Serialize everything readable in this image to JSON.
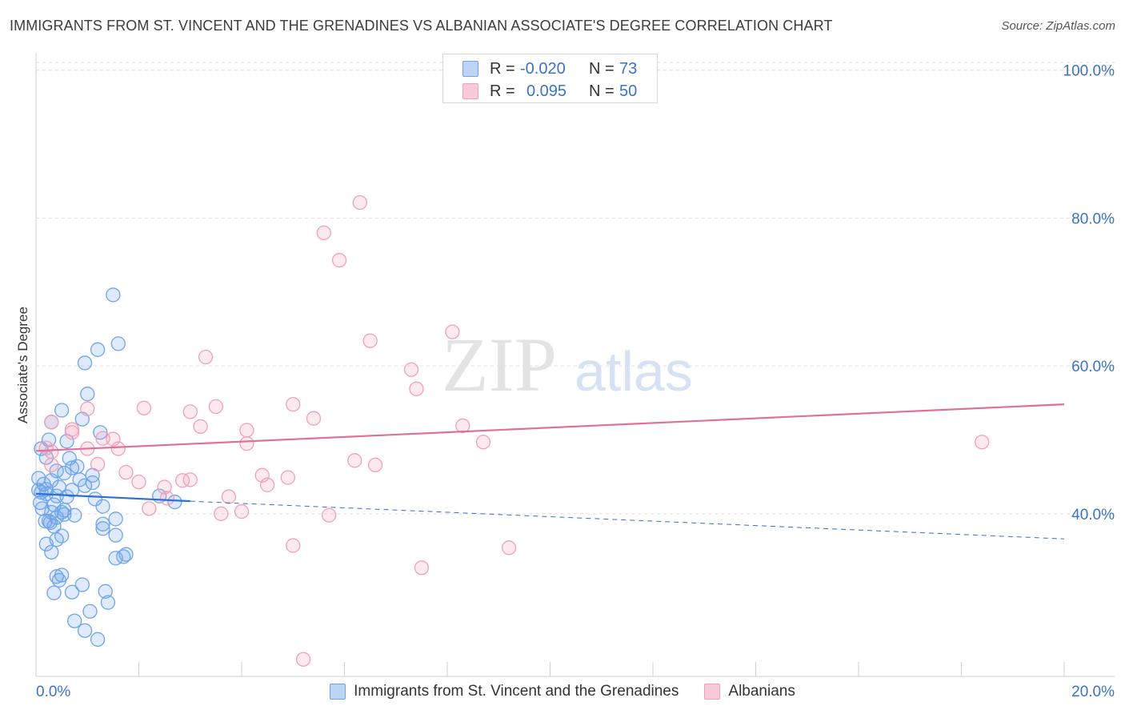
{
  "header": {
    "title": "IMMIGRANTS FROM ST. VINCENT AND THE GRENADINES VS ALBANIAN ASSOCIATE'S DEGREE CORRELATION CHART",
    "source": "Source: ZipAtlas.com"
  },
  "watermark": {
    "zip": "ZIP",
    "atlas": "atlas"
  },
  "legend": {
    "rows": [
      {
        "r_label": "R =",
        "r_value": "-0.020",
        "n_label": "N =",
        "n_value": "73",
        "color": "#6ea4e8"
      },
      {
        "r_label": "R =",
        "r_value": "0.095",
        "n_label": "N =",
        "n_value": "50",
        "color": "#f0a0b8"
      }
    ]
  },
  "chart_data": {
    "type": "scatter",
    "title": "IMMIGRANTS FROM ST. VINCENT AND THE GRENADINES VS ALBANIAN ASSOCIATE'S DEGREE CORRELATION CHART",
    "xlabel": "",
    "ylabel": "Associate's Degree",
    "xlim": [
      0,
      20
    ],
    "ylim": [
      18,
      103
    ],
    "x_tick_labels": [
      "0.0%",
      "20.0%"
    ],
    "y_ticks": [
      40,
      60,
      80,
      100
    ],
    "y_tick_labels": [
      "40.0%",
      "60.0%",
      "80.0%",
      "100.0%"
    ],
    "grid": true,
    "legend_position": "bottom-center",
    "series": [
      {
        "name": "Immigrants from St. Vincent and the Grenadines",
        "color": "#6ea4e8",
        "line_color": "#2f6fd0",
        "trend": {
          "x": [
            0,
            3
          ],
          "y": [
            42.7,
            41.7
          ],
          "dashed_to": [
            20,
            36.6
          ]
        },
        "points": [
          [
            1.5,
            69.6
          ],
          [
            1.2,
            62.2
          ],
          [
            1.6,
            63.0
          ],
          [
            0.95,
            60.4
          ],
          [
            1.0,
            56.2
          ],
          [
            0.5,
            54.0
          ],
          [
            0.9,
            52.8
          ],
          [
            0.3,
            52.4
          ],
          [
            0.25,
            50.0
          ],
          [
            0.6,
            49.8
          ],
          [
            1.25,
            51.0
          ],
          [
            0.1,
            48.8
          ],
          [
            0.2,
            47.6
          ],
          [
            0.65,
            47.5
          ],
          [
            0.8,
            46.4
          ],
          [
            0.4,
            45.8
          ],
          [
            0.7,
            46.2
          ],
          [
            0.55,
            45.5
          ],
          [
            0.05,
            44.8
          ],
          [
            0.3,
            44.5
          ],
          [
            1.1,
            44.2
          ],
          [
            0.7,
            43.2
          ],
          [
            0.1,
            42.9
          ],
          [
            0.2,
            42.7
          ],
          [
            0.4,
            42.4
          ],
          [
            1.15,
            42.0
          ],
          [
            2.4,
            42.4
          ],
          [
            2.7,
            41.6
          ],
          [
            0.35,
            41.2
          ],
          [
            1.3,
            41.0
          ],
          [
            0.55,
            40.5
          ],
          [
            0.3,
            40.2
          ],
          [
            0.4,
            39.5
          ],
          [
            0.5,
            40.2
          ],
          [
            0.55,
            39.9
          ],
          [
            0.75,
            39.8
          ],
          [
            1.55,
            39.3
          ],
          [
            1.3,
            38.6
          ],
          [
            0.25,
            39.0
          ],
          [
            0.35,
            38.3
          ],
          [
            1.3,
            38.0
          ],
          [
            0.4,
            36.5
          ],
          [
            0.5,
            37.0
          ],
          [
            1.55,
            37.1
          ],
          [
            0.2,
            35.9
          ],
          [
            0.3,
            34.8
          ],
          [
            1.55,
            34.0
          ],
          [
            1.75,
            34.5
          ],
          [
            1.7,
            34.2
          ],
          [
            0.4,
            31.5
          ],
          [
            0.5,
            31.7
          ],
          [
            0.45,
            31.0
          ],
          [
            0.9,
            30.4
          ],
          [
            1.35,
            29.5
          ],
          [
            0.35,
            29.3
          ],
          [
            0.7,
            29.4
          ],
          [
            1.4,
            28.0
          ],
          [
            1.05,
            26.8
          ],
          [
            0.75,
            25.5
          ],
          [
            0.95,
            24.2
          ],
          [
            1.2,
            23.0
          ],
          [
            0.05,
            43.2
          ],
          [
            0.08,
            41.5
          ],
          [
            0.15,
            44.0
          ],
          [
            0.2,
            43.3
          ],
          [
            0.12,
            40.7
          ],
          [
            0.18,
            39.0
          ],
          [
            0.28,
            38.8
          ],
          [
            0.6,
            42.3
          ],
          [
            0.85,
            44.6
          ],
          [
            0.95,
            43.8
          ],
          [
            1.1,
            45.2
          ],
          [
            0.45,
            43.6
          ]
        ]
      },
      {
        "name": "Albanians",
        "color": "#f0a0b8",
        "line_color": "#e0709a",
        "trend": {
          "x": [
            0,
            20
          ],
          "y": [
            48.5,
            54.8
          ]
        },
        "points": [
          [
            6.3,
            82.1
          ],
          [
            5.6,
            78.0
          ],
          [
            5.9,
            74.3
          ],
          [
            8.1,
            64.6
          ],
          [
            6.5,
            63.4
          ],
          [
            3.3,
            61.2
          ],
          [
            7.3,
            59.5
          ],
          [
            7.4,
            56.9
          ],
          [
            2.1,
            54.3
          ],
          [
            3.5,
            54.5
          ],
          [
            5.0,
            54.8
          ],
          [
            1.0,
            54.2
          ],
          [
            3.0,
            53.8
          ],
          [
            0.3,
            52.4
          ],
          [
            5.4,
            52.9
          ],
          [
            3.2,
            51.8
          ],
          [
            8.3,
            51.9
          ],
          [
            0.7,
            51.4
          ],
          [
            4.1,
            51.3
          ],
          [
            0.7,
            51.0
          ],
          [
            1.3,
            50.2
          ],
          [
            1.5,
            50.1
          ],
          [
            8.7,
            49.7
          ],
          [
            18.4,
            49.7
          ],
          [
            4.1,
            49.5
          ],
          [
            0.2,
            48.9
          ],
          [
            0.3,
            48.4
          ],
          [
            1.0,
            48.8
          ],
          [
            1.6,
            48.8
          ],
          [
            1.2,
            46.7
          ],
          [
            0.3,
            46.6
          ],
          [
            6.2,
            47.2
          ],
          [
            6.6,
            46.6
          ],
          [
            1.75,
            45.6
          ],
          [
            4.4,
            45.2
          ],
          [
            4.9,
            44.9
          ],
          [
            2.0,
            44.3
          ],
          [
            2.85,
            44.5
          ],
          [
            3.0,
            44.6
          ],
          [
            2.5,
            43.6
          ],
          [
            4.5,
            43.9
          ],
          [
            2.55,
            42.1
          ],
          [
            3.75,
            42.3
          ],
          [
            2.2,
            40.7
          ],
          [
            3.6,
            40.0
          ],
          [
            4.0,
            40.3
          ],
          [
            5.7,
            39.8
          ],
          [
            5.0,
            35.7
          ],
          [
            9.2,
            35.4
          ],
          [
            7.5,
            32.7
          ]
        ]
      },
      {
        "name": "Albanians (outlier)",
        "color": "#f0a0b8",
        "points": [
          [
            5.2,
            20.3
          ]
        ]
      }
    ]
  },
  "bottom_legend": {
    "items": [
      {
        "label": "Immigrants from St. Vincent and the Grenadines",
        "color": "#6ea4e8"
      },
      {
        "label": "Albanians",
        "color": "#f0a0b8"
      }
    ]
  }
}
